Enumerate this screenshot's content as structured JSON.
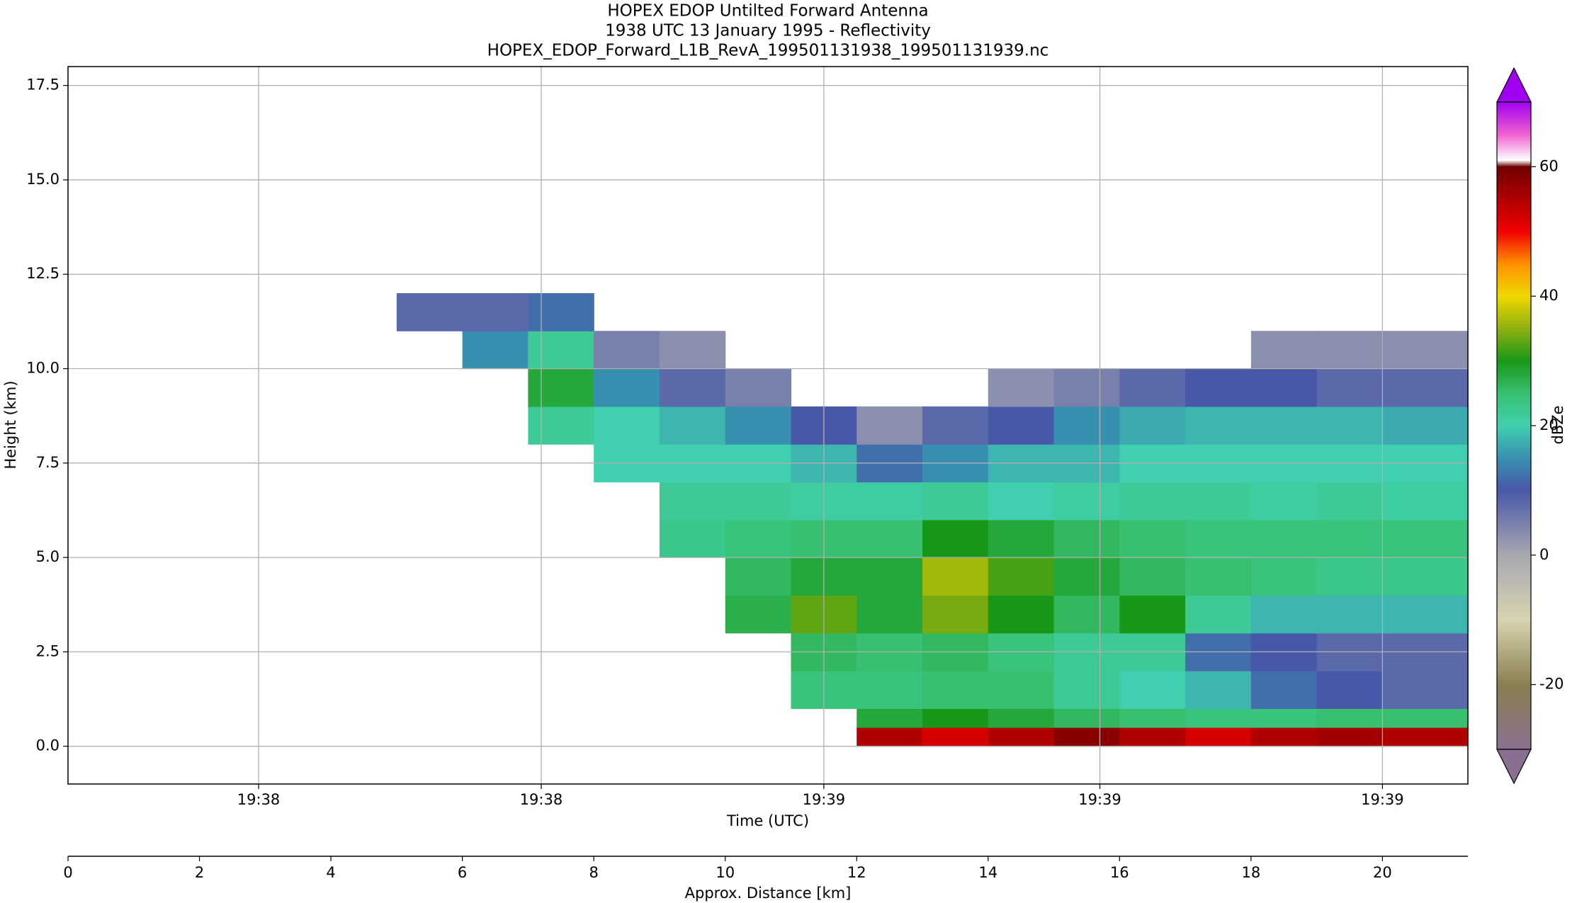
{
  "chart_data": {
    "type": "heatmap",
    "title": "HOPEX EDOP Untilted Forward Antenna",
    "subtitle": "1938 UTC 13 January 1995 - Reflectivity",
    "filename": "HOPEX_EDOP_Forward_L1B_RevA_199501131938_199501131939.nc",
    "xlabel": "Time (UTC)",
    "ylabel": "Height (km)",
    "x2label": "Approx. Distance [km]",
    "colorbar_label": "dBZe",
    "xlim": [
      0,
      21.3
    ],
    "ylim": [
      -1,
      18
    ],
    "xticks": [
      {
        "value": 2.9,
        "label": "19:38"
      },
      {
        "value": 7.2,
        "label": "19:38"
      },
      {
        "value": 11.5,
        "label": "19:39"
      },
      {
        "value": 15.7,
        "label": "19:39"
      },
      {
        "value": 20.0,
        "label": "19:39"
      }
    ],
    "yticks": [
      {
        "value": 0,
        "label": "0.0"
      },
      2.5,
      {
        "value": 5,
        "label": "5.0"
      },
      7.5,
      {
        "value": 10,
        "label": "10.0"
      },
      12.5,
      {
        "value": 15,
        "label": "15.0"
      },
      17.5
    ],
    "x2ticks": [
      0,
      2,
      4,
      6,
      8,
      10,
      12,
      14,
      16,
      18,
      20
    ],
    "grid": true,
    "clim": [
      -30,
      70
    ],
    "cticks": [
      -20,
      0,
      20,
      40,
      60
    ],
    "colormap": [
      {
        "value": -30,
        "color": "#8a7090"
      },
      {
        "value": -20,
        "color": "#8a8050"
      },
      {
        "value": -10,
        "color": "#d8d4b0"
      },
      {
        "value": 0,
        "color": "#a8a8b0"
      },
      {
        "value": 10,
        "color": "#4858a8"
      },
      {
        "value": 15,
        "color": "#3890b0"
      },
      {
        "value": 20,
        "color": "#40d0b0"
      },
      {
        "value": 25,
        "color": "#38c070"
      },
      {
        "value": 30,
        "color": "#189818"
      },
      {
        "value": 35,
        "color": "#90b010"
      },
      {
        "value": 40,
        "color": "#f0d800"
      },
      {
        "value": 45,
        "color": "#ff9000"
      },
      {
        "value": 50,
        "color": "#f00000"
      },
      {
        "value": 55,
        "color": "#b00000"
      },
      {
        "value": 60,
        "color": "#700000"
      },
      {
        "value": 61,
        "color": "#ffffff"
      },
      {
        "value": 65,
        "color": "#f060d0"
      },
      {
        "value": 70,
        "color": "#a000f0"
      }
    ],
    "x_edges": [
      0,
      1,
      2,
      3,
      4,
      5,
      6,
      7,
      8,
      9,
      10,
      11,
      12,
      13,
      14,
      15,
      16,
      17,
      18,
      19,
      20,
      21.3
    ],
    "y_edges": [
      0,
      0.5,
      1,
      2,
      3,
      4,
      5,
      6,
      7,
      8,
      9,
      10,
      11,
      12
    ],
    "z": [
      [
        null,
        null,
        null,
        null,
        null,
        null,
        null,
        null,
        null,
        null,
        null,
        null,
        55,
        52,
        55,
        58,
        55,
        52,
        55,
        56,
        55
      ],
      [
        null,
        null,
        null,
        null,
        null,
        null,
        null,
        null,
        null,
        null,
        null,
        null,
        28,
        30,
        28,
        26,
        25,
        24,
        24,
        25,
        25
      ],
      [
        null,
        null,
        null,
        null,
        null,
        null,
        null,
        null,
        null,
        null,
        null,
        24,
        24,
        25,
        25,
        22,
        20,
        18,
        12,
        10,
        8
      ],
      [
        null,
        null,
        null,
        null,
        null,
        null,
        null,
        null,
        null,
        null,
        null,
        26,
        25,
        26,
        24,
        22,
        22,
        12,
        10,
        8,
        8
      ],
      [
        null,
        null,
        null,
        null,
        null,
        null,
        null,
        null,
        null,
        null,
        27,
        33,
        28,
        34,
        30,
        26,
        30,
        22,
        18,
        18,
        18
      ],
      [
        null,
        null,
        null,
        null,
        null,
        null,
        null,
        null,
        null,
        null,
        26,
        28,
        28,
        36,
        32,
        28,
        26,
        25,
        24,
        23,
        23
      ],
      [
        null,
        null,
        null,
        null,
        null,
        null,
        null,
        null,
        null,
        23,
        24,
        25,
        25,
        30,
        28,
        26,
        25,
        24,
        24,
        24,
        24
      ],
      [
        null,
        null,
        null,
        null,
        null,
        null,
        null,
        null,
        null,
        22,
        22,
        21,
        21,
        22,
        20,
        21,
        22,
        22,
        21,
        22,
        21
      ],
      [
        null,
        null,
        null,
        null,
        null,
        null,
        null,
        null,
        20,
        20,
        20,
        18,
        12,
        15,
        18,
        18,
        20,
        20,
        20,
        20,
        20
      ],
      [
        null,
        null,
        null,
        null,
        null,
        null,
        null,
        22,
        20,
        18,
        15,
        10,
        3,
        8,
        10,
        15,
        17,
        18,
        18,
        18,
        17
      ],
      [
        null,
        null,
        null,
        null,
        null,
        null,
        null,
        28,
        15,
        8,
        5,
        null,
        null,
        null,
        3,
        5,
        8,
        10,
        10,
        8,
        8
      ],
      [
        null,
        null,
        null,
        null,
        null,
        null,
        15,
        22,
        5,
        3,
        null,
        null,
        null,
        null,
        null,
        null,
        null,
        null,
        3,
        3,
        3
      ],
      [
        null,
        null,
        null,
        null,
        null,
        8,
        8,
        12,
        null,
        null,
        null,
        null,
        null,
        null,
        null,
        null,
        null,
        null,
        null,
        null,
        null
      ]
    ]
  }
}
